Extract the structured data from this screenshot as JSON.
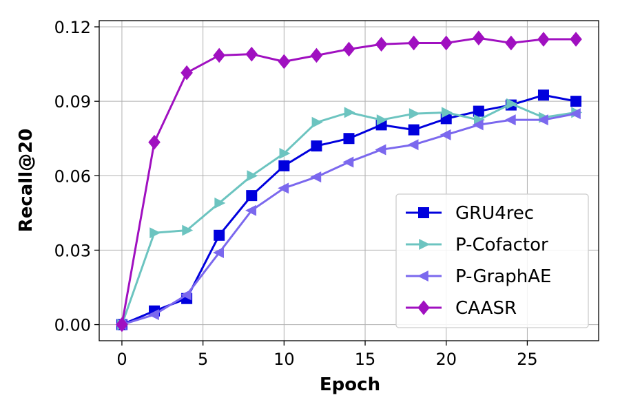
{
  "chart_data": {
    "type": "line",
    "xlabel": "Epoch",
    "ylabel": "Recall@20",
    "xlim": [
      -1.4,
      29.4
    ],
    "ylim": [
      -0.0065,
      0.1225
    ],
    "xticks": [
      0,
      5,
      10,
      15,
      20,
      25
    ],
    "xtick_labels": [
      "0",
      "5",
      "10",
      "15",
      "20",
      "25"
    ],
    "yticks": [
      0.0,
      0.03,
      0.06,
      0.09,
      0.12
    ],
    "ytick_labels": [
      "0.00",
      "0.03",
      "0.06",
      "0.09",
      "0.12"
    ],
    "grid": true,
    "legend_position": "lower-right",
    "x": [
      0,
      2,
      4,
      6,
      8,
      10,
      12,
      14,
      16,
      18,
      20,
      22,
      24,
      26,
      28
    ],
    "series": [
      {
        "name": "GRU4rec",
        "color": "#0000dd",
        "marker": "square",
        "values": [
          0.0,
          0.0055,
          0.0105,
          0.036,
          0.052,
          0.064,
          0.072,
          0.075,
          0.0805,
          0.0785,
          0.083,
          0.086,
          0.0885,
          0.0925,
          0.09
        ]
      },
      {
        "name": "P-Cofactor",
        "color": "#6cc4c0",
        "marker": "triangle-right",
        "values": [
          0.0,
          0.037,
          0.038,
          0.049,
          0.06,
          0.069,
          0.0815,
          0.0855,
          0.0825,
          0.085,
          0.0855,
          0.0825,
          0.089,
          0.0835,
          0.0855
        ]
      },
      {
        "name": "P-GraphAE",
        "color": "#7b68ee",
        "marker": "triangle-left",
        "values": [
          0.0,
          0.004,
          0.012,
          0.029,
          0.046,
          0.055,
          0.0595,
          0.0655,
          0.0705,
          0.0725,
          0.0765,
          0.0805,
          0.0825,
          0.0825,
          0.085
        ]
      },
      {
        "name": "CAASR",
        "color": "#a010c0",
        "marker": "diamond",
        "values": [
          0.0,
          0.0735,
          0.1015,
          0.1085,
          0.109,
          0.106,
          0.1085,
          0.111,
          0.113,
          0.1135,
          0.1135,
          0.1155,
          0.1135,
          0.115,
          0.115
        ]
      }
    ]
  }
}
